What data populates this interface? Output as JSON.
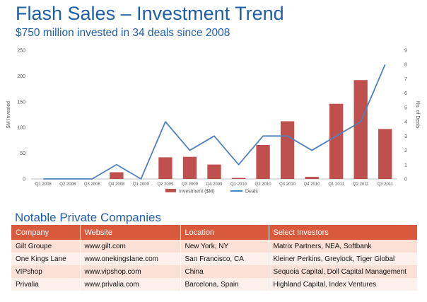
{
  "header": {
    "title": "Flash Sales – Investment Trend",
    "subtitle": "$750 million invested in 34 deals since 2008"
  },
  "colors": {
    "bar": "#c0504d",
    "line": "#4f81bd",
    "title": "#1f5fa8",
    "table_header": "#d9593c"
  },
  "chart_data": {
    "type": "bar+line",
    "categories": [
      "Q1 2008",
      "Q2 2008",
      "Q3 2008",
      "Q4 2008",
      "Q1 2009",
      "Q2 2009",
      "Q3 2009",
      "Q4 2009",
      "Q1 2010",
      "Q2 2010",
      "Q3 2010",
      "Q4 2010",
      "Q1 2011",
      "Q2 2011",
      "Q3 2011"
    ],
    "series": [
      {
        "name": "Investment ($M)",
        "type": "bar",
        "axis": "left",
        "values": [
          0,
          0,
          0,
          13,
          0,
          42,
          43,
          28,
          2,
          66,
          112,
          4,
          146,
          192,
          97
        ]
      },
      {
        "name": "Deals",
        "type": "line",
        "axis": "right",
        "values": [
          0,
          0,
          0,
          1,
          0,
          4,
          2,
          3,
          1,
          3,
          3,
          2,
          3,
          4,
          8
        ]
      }
    ],
    "ylabel": "$M Invested",
    "y2label": "No. of Deals",
    "ylim": [
      0,
      250
    ],
    "yticks": [
      0,
      50,
      100,
      150,
      200,
      250
    ],
    "y2lim": [
      0,
      9
    ],
    "y2ticks": [
      0,
      1,
      2,
      3,
      4,
      5,
      6,
      7,
      8,
      9
    ],
    "legend": [
      "Investment ($M)",
      "Deals"
    ],
    "legend_position": "bottom"
  },
  "companies": {
    "title": "Notable Private Companies",
    "columns": [
      "Company",
      "Website",
      "Location",
      "Select Investors"
    ],
    "rows": [
      [
        "Gilt Groupe",
        "www.gilt.com",
        "New York, NY",
        "Matrix Partners, NEA, Softbank"
      ],
      [
        "One Kings Lane",
        "www.onekingslane.com",
        "San Francisco, CA",
        "Kleiner Perkins, Greylock, Tiger Global"
      ],
      [
        "VIPshop",
        "www.vipshop.com",
        "China",
        "Sequoia Capital, Doll Capital Management"
      ],
      [
        "Privalia",
        "www.privalia.com",
        "Barcelona, Spain",
        "Highland Capital, Index Ventures"
      ]
    ]
  }
}
